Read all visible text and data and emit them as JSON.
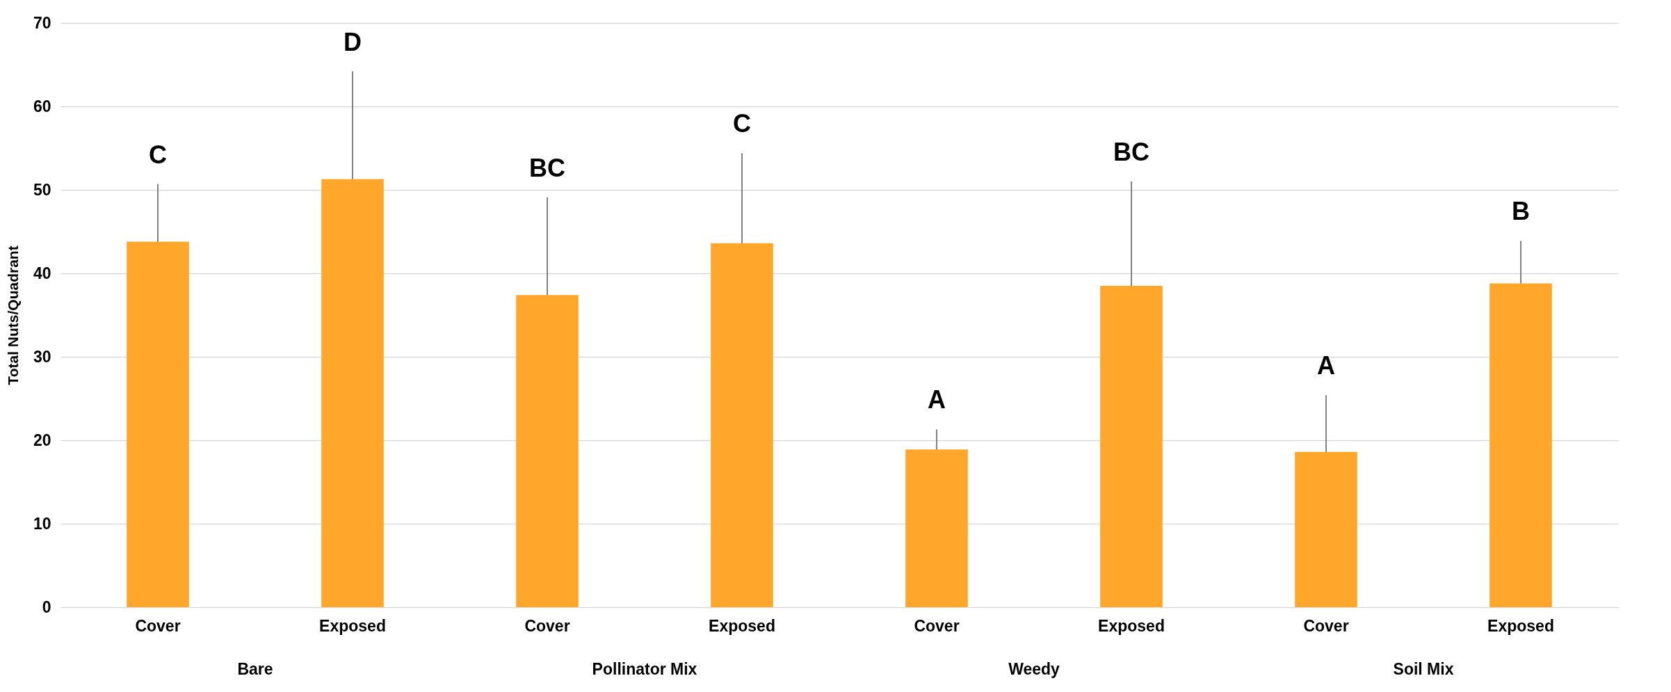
{
  "chart_data": {
    "type": "bar",
    "ylabel": "Total Nuts/Quadrant",
    "categories": [
      "Cover",
      "Exposed",
      "Cover",
      "Exposed",
      "Cover",
      "Exposed",
      "Cover",
      "Exposed"
    ],
    "values": [
      43.8,
      51.3,
      37.4,
      43.6,
      18.9,
      38.5,
      18.6,
      38.8
    ],
    "errors": [
      [
        43.8,
        50.7
      ],
      [
        51.3,
        64.2
      ],
      [
        37.4,
        49.1
      ],
      [
        43.6,
        54.4
      ],
      [
        18.9,
        21.3
      ],
      [
        38.5,
        51.0
      ],
      [
        18.6,
        25.4
      ],
      [
        38.8,
        43.9
      ]
    ],
    "color": "#ffa62b",
    "annotations": [
      "Bare",
      "Pollinator Mix",
      "Weedy",
      "Soil Mix",
      "C",
      "D",
      "BC",
      "C",
      "A",
      "BC",
      "A",
      "B"
    ],
    "ylim": [
      0,
      70
    ],
    "yticks": [
      0,
      10,
      20,
      30,
      40,
      50,
      60,
      70
    ],
    "grid": true
  }
}
